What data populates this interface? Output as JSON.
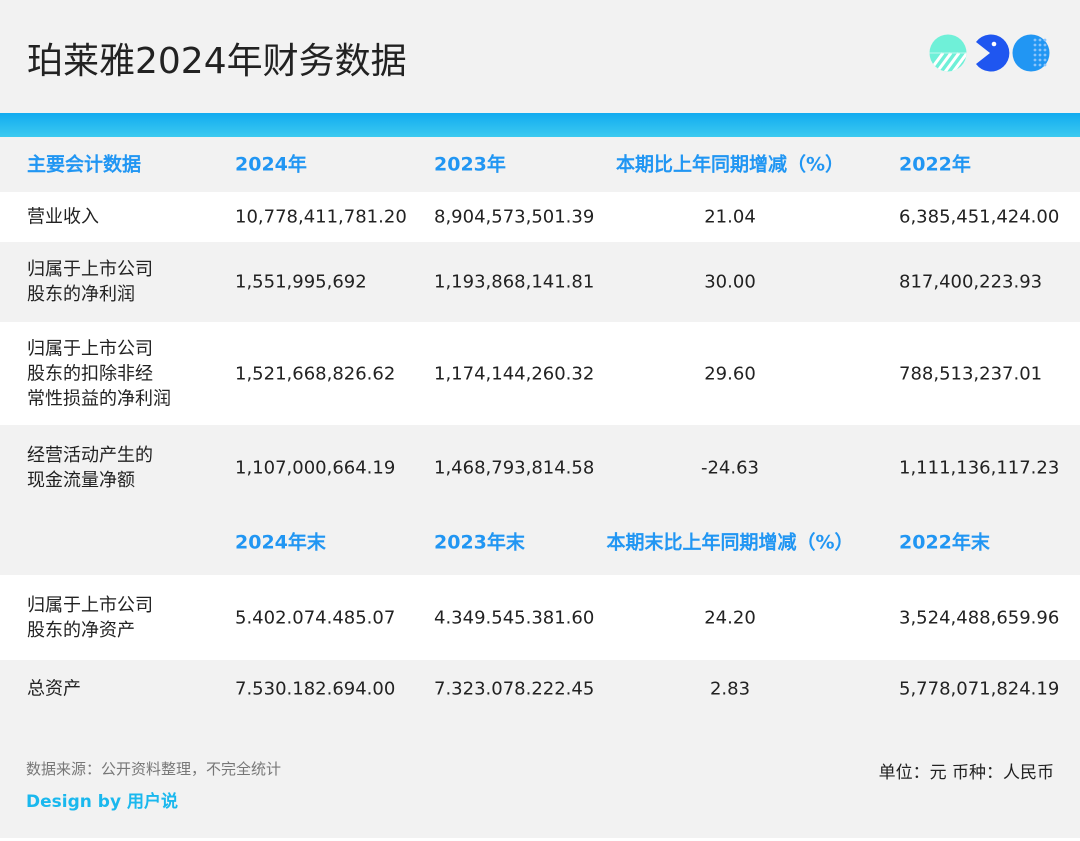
{
  "title": "珀莱雅2024年财务数据",
  "colors": {
    "accent": "#2196f3",
    "bar": "#12abf0",
    "logo": [
      "#6ff0d8",
      "#1f56f0",
      "#2196f3"
    ]
  },
  "header1": [
    "主要会计数据",
    "2024年",
    "2023年",
    "本期比上年同期增减（%）",
    "2022年"
  ],
  "rows1": [
    [
      "营业收入",
      "10,778,411,781.20",
      "8,904,573,501.39",
      "21.04",
      "6,385,451,424.00"
    ],
    [
      "归属于上市公司\n股东的净利润",
      "1,551,995,692",
      "1,193,868,141.81",
      "30.00",
      "817,400,223.93"
    ],
    [
      "归属于上市公司\n股东的扣除非经\n常性损益的净利润",
      "1,521,668,826.62",
      "1,174,144,260.32",
      "29.60",
      "788,513,237.01"
    ],
    [
      "经营活动产生的\n现金流量净额",
      "1,107,000,664.19",
      "1,468,793,814.58",
      "-24.63",
      "1,111,136,117.23"
    ]
  ],
  "header2": [
    "",
    "2024年末",
    "2023年末",
    "本期末比上年同期增减（%）",
    "2022年末"
  ],
  "rows2": [
    [
      "归属于上市公司\n股东的净资产",
      "5.402.074.485.07",
      "4.349.545.381.60",
      "24.20",
      "3,524,488,659.96"
    ],
    [
      "总资产",
      "7.530.182.694.00",
      "7.323.078.222.45",
      "2.83",
      "5,778,071,824.19"
    ]
  ],
  "footer": {
    "source": "数据来源：公开资料整理，不完全统计",
    "design": "Design by 用户说",
    "unit": "单位：元 币种：人民币"
  }
}
